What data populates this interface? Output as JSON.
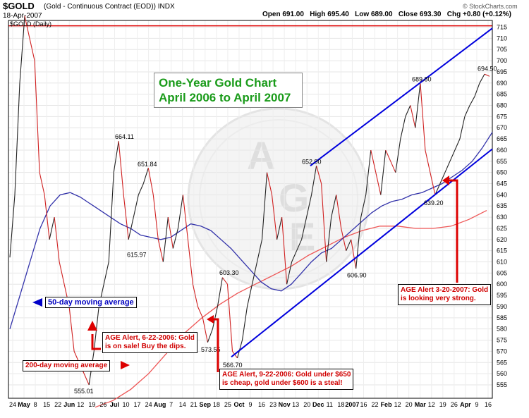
{
  "header": {
    "symbol": "$GOLD",
    "name": "(Gold - Continuous Contract (EOD))  INDX",
    "date": "18-Apr-2007",
    "ohlc": "Open 691.00   High 695.40   Low 689.00   Close 693.30   Chg +0.80 (+0.12%)",
    "brand": "© StockCharts.com",
    "legend": "$GOLD (Daily)"
  },
  "title_box": {
    "line1": "One-Year Gold Chart",
    "line2": "April 2006 to April 2007"
  },
  "labels": {
    "ma50": "50-day moving average",
    "ma200": "200-day moving average"
  },
  "alerts": [
    {
      "lines": [
        "AGE Alert, 6-22-2006: Gold",
        "is on sale! Buy the dips."
      ]
    },
    {
      "lines": [
        "AGE Alert, 9-22-2006: Gold under $650",
        "is cheap, gold under $600 is a steal!"
      ]
    },
    {
      "lines": [
        "AGE Alert 3-20-2007: Gold",
        "is looking very strong."
      ]
    }
  ],
  "watermark": {
    "letters": [
      "A",
      "G",
      "E"
    ]
  },
  "colors": {
    "up": "#222222",
    "down": "#d02020",
    "ma50": "#3333aa",
    "ma200": "#ee5555",
    "channel": "#0000dd",
    "title": "#1a9b1a"
  },
  "chart_data": {
    "type": "line",
    "title": "One-Year Gold Chart",
    "subtitle": "April 2006 to April 2007",
    "ylim": [
      549,
      718
    ],
    "y_ticks": [
      555,
      560,
      565,
      570,
      575,
      580,
      585,
      590,
      595,
      600,
      605,
      610,
      615,
      620,
      625,
      630,
      635,
      640,
      645,
      650,
      655,
      660,
      665,
      670,
      675,
      680,
      685,
      690,
      695,
      700,
      705,
      710,
      715
    ],
    "x_ticks": [
      "24",
      "May",
      "8",
      "15",
      "22",
      "Jun",
      "12",
      "19",
      "26",
      "Jul",
      "10",
      "17",
      "24",
      "Aug",
      "7",
      "14",
      "21",
      "Sep",
      "18",
      "25",
      "Oct",
      "9",
      "16",
      "23",
      "Nov",
      "13",
      "20",
      "Dec",
      "11",
      "18",
      "2007",
      "16",
      "22",
      "Feb",
      "12",
      "20",
      "Mar",
      "12",
      "19",
      "26",
      "Apr",
      "9",
      "16"
    ],
    "series": [
      {
        "values": [
          612,
          640,
          690,
          720,
          710,
          700,
          650,
          640,
          620,
          630,
          610,
          600,
          590,
          570,
          565,
          560,
          555,
          570,
          590,
          600,
          610,
          650,
          664,
          640,
          620,
          630,
          640,
          645,
          652,
          640,
          620,
          610,
          630,
          616,
          625,
          640,
          620,
          600,
          590,
          585,
          574,
          580,
          590,
          603,
          600,
          570,
          567,
          575,
          590,
          600,
          610,
          620,
          650,
          640,
          620,
          630,
          600,
          610,
          615,
          620,
          630,
          640,
          653,
          645,
          610,
          630,
          640,
          625,
          615,
          620,
          607,
          630,
          640,
          660,
          650,
          640,
          660,
          655,
          650,
          665,
          675,
          680,
          670,
          690,
          660,
          650,
          640,
          645,
          650,
          655,
          660,
          665,
          675,
          680,
          684,
          690,
          694,
          693
        ]
      },
      {
        "values": [
          580,
          595,
          610,
          625,
          635,
          640,
          641,
          639,
          636,
          633,
          630,
          627,
          625,
          622,
          621,
          620,
          621,
          624,
          627,
          626,
          624,
          620,
          616,
          611,
          606,
          601,
          598,
          597,
          600,
          605,
          610,
          614,
          616,
          620,
          624,
          628,
          632,
          635,
          637,
          638,
          640,
          641,
          643,
          645,
          648,
          651,
          655,
          661,
          668
        ]
      },
      {
        "values": [
          545,
          548,
          553,
          560,
          569,
          578,
          585,
          591,
          596,
          600,
          604,
          608,
          613,
          617,
          621,
          624,
          626,
          626,
          625,
          625,
          626,
          629,
          633
        ]
      }
    ],
    "annotations": [
      "664.11",
      "651.84",
      "615.97",
      "555.01",
      "603.30",
      "573.55",
      "566.70",
      "652.90",
      "606.90",
      "689.80",
      "639.20",
      "694.50"
    ]
  }
}
